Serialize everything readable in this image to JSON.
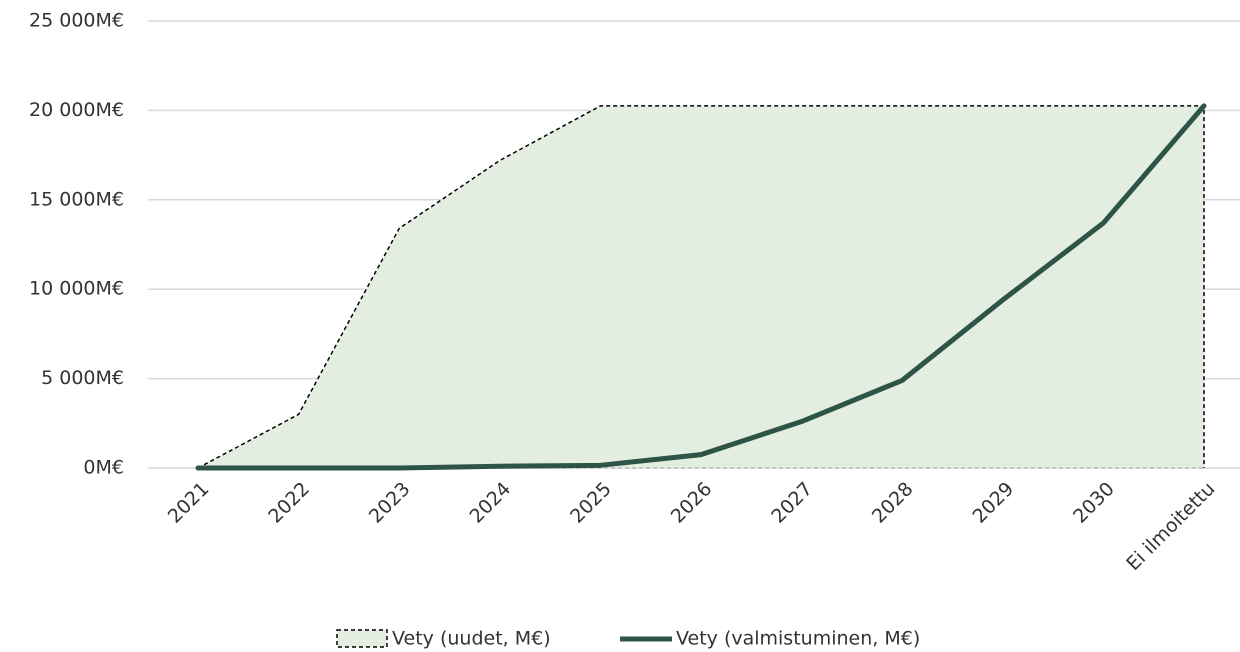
{
  "chart_data": {
    "type": "area_line",
    "categories": [
      "2021",
      "2022",
      "2023",
      "2024",
      "2025",
      "2026",
      "2027",
      "2028",
      "2029",
      "2030",
      "Ei ilmoitettu"
    ],
    "series": [
      {
        "name": "Vety (uudet, M€)",
        "color": "#e3eee1",
        "values": [
          0,
          3000,
          13400,
          17200,
          20250,
          20250,
          20250,
          20250,
          20250,
          20250,
          20250
        ]
      },
      {
        "name": "Vety (valmistuminen, M€)",
        "color": "#2d5446",
        "values": [
          0,
          0,
          0,
          100,
          150,
          750,
          2600,
          4900,
          9400,
          13700,
          20250
        ]
      }
    ],
    "ylim": [
      0,
      25000
    ],
    "yticks": [
      {
        "value": 0,
        "label": "0M€"
      },
      {
        "value": 5000,
        "label": "5 000M€"
      },
      {
        "value": 10000,
        "label": "10 000M€"
      },
      {
        "value": 15000,
        "label": "15 000M€"
      },
      {
        "value": 20000,
        "label": "20 000M€"
      },
      {
        "value": 25000,
        "label": "25 000M€"
      }
    ],
    "grid": true
  }
}
